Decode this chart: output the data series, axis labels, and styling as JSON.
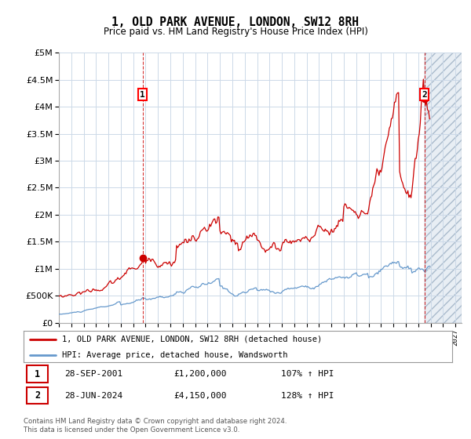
{
  "title": "1, OLD PARK AVENUE, LONDON, SW12 8RH",
  "subtitle": "Price paid vs. HM Land Registry's House Price Index (HPI)",
  "legend_line1": "1, OLD PARK AVENUE, LONDON, SW12 8RH (detached house)",
  "legend_line2": "HPI: Average price, detached house, Wandsworth",
  "footer1": "Contains HM Land Registry data © Crown copyright and database right 2024.",
  "footer2": "This data is licensed under the Open Government Licence v3.0.",
  "table": [
    {
      "num": "1",
      "date": "28-SEP-2001",
      "price": "£1,200,000",
      "hpi": "107% ↑ HPI"
    },
    {
      "num": "2",
      "date": "28-JUN-2024",
      "price": "£4,150,000",
      "hpi": "128% ↑ HPI"
    }
  ],
  "sale1_x": 2001.75,
  "sale1_y": 1200000,
  "sale2_x": 2024.5,
  "sale2_y": 4150000,
  "ylim": [
    0,
    5000000
  ],
  "xlim_start": 1995.0,
  "xlim_end": 2027.5,
  "red_color": "#cc0000",
  "blue_color": "#6699cc",
  "background_color": "#ffffff",
  "grid_color": "#ccd9e8",
  "hatch_color": "#dddddd"
}
